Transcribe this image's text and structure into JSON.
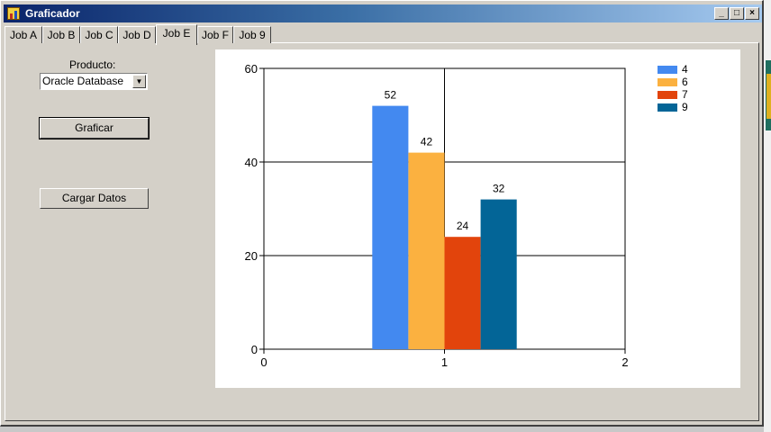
{
  "window": {
    "title": "Graficador",
    "controls": [
      "_",
      "□",
      "×"
    ]
  },
  "tabs": [
    "Job A",
    "Job B",
    "Job C",
    "Job D",
    "Job E",
    "Job F",
    "Job 9"
  ],
  "active_tab": "Job E",
  "form": {
    "product_label": "Producto:",
    "product_value": "Oracle Database",
    "graph_button": "Graficar",
    "load_button": "Cargar Datos"
  },
  "chart_data": {
    "type": "bar",
    "xlim": [
      0,
      2
    ],
    "ylim": [
      0,
      60
    ],
    "x_ticks": [
      "0",
      "1",
      "2"
    ],
    "y_ticks": [
      "0",
      "20",
      "40",
      "60"
    ],
    "grid": true,
    "legend_position": "top-right",
    "x_center": 1,
    "series": [
      {
        "name": "4",
        "value": 52,
        "color": "#4389f0"
      },
      {
        "name": "6",
        "value": 42,
        "color": "#fbb140"
      },
      {
        "name": "7",
        "value": 24,
        "color": "#e2440c"
      },
      {
        "name": "9",
        "value": 32,
        "color": "#036597"
      }
    ]
  }
}
